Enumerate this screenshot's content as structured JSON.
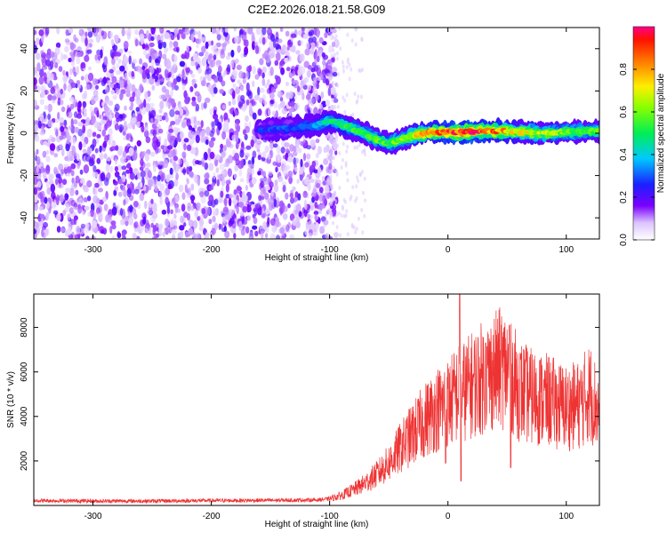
{
  "figure": {
    "title": "C2E2.2026.018.21.58.G09"
  },
  "chart_data": [
    {
      "type": "heatmap",
      "xlabel": "Height of straight line (km)",
      "ylabel": "Frequency (Hz)",
      "xlim": [
        -350,
        128
      ],
      "ylim": [
        -50,
        50
      ],
      "x_ticks": [
        -300,
        -200,
        -100,
        0,
        100
      ],
      "y_ticks": [
        -40,
        -20,
        0,
        20,
        40
      ],
      "colorbar": {
        "label": "Normalized spectral amplitude",
        "range": [
          0,
          1
        ],
        "ticks": [
          "0.0",
          "0.2",
          "0.4",
          "0.6",
          "0.8"
        ]
      },
      "noise_region_x": [
        -350,
        -100
      ],
      "signal_ridge": [
        {
          "x": -160,
          "y": 1.5,
          "amp": 0.25
        },
        {
          "x": -130,
          "y": 2.5,
          "amp": 0.3
        },
        {
          "x": -110,
          "y": 4.0,
          "amp": 0.35
        },
        {
          "x": -100,
          "y": 6.0,
          "amp": 0.45
        },
        {
          "x": -90,
          "y": 4.0,
          "amp": 0.5
        },
        {
          "x": -75,
          "y": 1.0,
          "amp": 0.5
        },
        {
          "x": -60,
          "y": -3.0,
          "amp": 0.55
        },
        {
          "x": -50,
          "y": -5.0,
          "amp": 0.55
        },
        {
          "x": -40,
          "y": -3.0,
          "amp": 0.6
        },
        {
          "x": -30,
          "y": -1.0,
          "amp": 0.7
        },
        {
          "x": -15,
          "y": 0.5,
          "amp": 0.8
        },
        {
          "x": 0,
          "y": 0.5,
          "amp": 0.85
        },
        {
          "x": 15,
          "y": 0.5,
          "amp": 0.95
        },
        {
          "x": 30,
          "y": 1.0,
          "amp": 0.85
        },
        {
          "x": 45,
          "y": 1.0,
          "amp": 0.8
        },
        {
          "x": 60,
          "y": 0.5,
          "amp": 0.7
        },
        {
          "x": 80,
          "y": 0.0,
          "amp": 0.65
        },
        {
          "x": 100,
          "y": 0.5,
          "amp": 0.6
        },
        {
          "x": 128,
          "y": 1.0,
          "amp": 0.55
        }
      ]
    },
    {
      "type": "line",
      "xlabel": "Height of straight line (km)",
      "ylabel": "SNR (10 * v/v)",
      "xlim": [
        -350,
        128
      ],
      "ylim": [
        0,
        9500
      ],
      "x_ticks": [
        -300,
        -200,
        -100,
        0,
        100
      ],
      "y_ticks": [
        2000,
        4000,
        6000,
        8000
      ],
      "series_color": "#ee3333",
      "series_envelope": [
        {
          "x": -350,
          "y": 220
        },
        {
          "x": -300,
          "y": 200
        },
        {
          "x": -250,
          "y": 200
        },
        {
          "x": -200,
          "y": 220
        },
        {
          "x": -150,
          "y": 230
        },
        {
          "x": -110,
          "y": 250
        },
        {
          "x": -100,
          "y": 300
        },
        {
          "x": -90,
          "y": 450
        },
        {
          "x": -80,
          "y": 700
        },
        {
          "x": -70,
          "y": 1000
        },
        {
          "x": -60,
          "y": 1400
        },
        {
          "x": -50,
          "y": 1900
        },
        {
          "x": -40,
          "y": 2600
        },
        {
          "x": -30,
          "y": 3200
        },
        {
          "x": -20,
          "y": 3800
        },
        {
          "x": -10,
          "y": 4300
        },
        {
          "x": 0,
          "y": 4600
        },
        {
          "x": 8,
          "y": 5000
        },
        {
          "x": 15,
          "y": 5200
        },
        {
          "x": 25,
          "y": 5600
        },
        {
          "x": 35,
          "y": 5900
        },
        {
          "x": 45,
          "y": 6200
        },
        {
          "x": 52,
          "y": 6000
        },
        {
          "x": 60,
          "y": 5200
        },
        {
          "x": 70,
          "y": 4900
        },
        {
          "x": 85,
          "y": 4700
        },
        {
          "x": 100,
          "y": 4400
        },
        {
          "x": 110,
          "y": 4500
        },
        {
          "x": 120,
          "y": 5100
        },
        {
          "x": 128,
          "y": 4200
        }
      ],
      "spikes": [
        {
          "x": 10,
          "y": 9500
        },
        {
          "x": 11,
          "y": 1100
        },
        {
          "x": 52,
          "y": 8100
        },
        {
          "x": 53,
          "y": 1700
        },
        {
          "x": -2,
          "y": 1900
        },
        {
          "x": 32,
          "y": 7300
        }
      ]
    }
  ]
}
